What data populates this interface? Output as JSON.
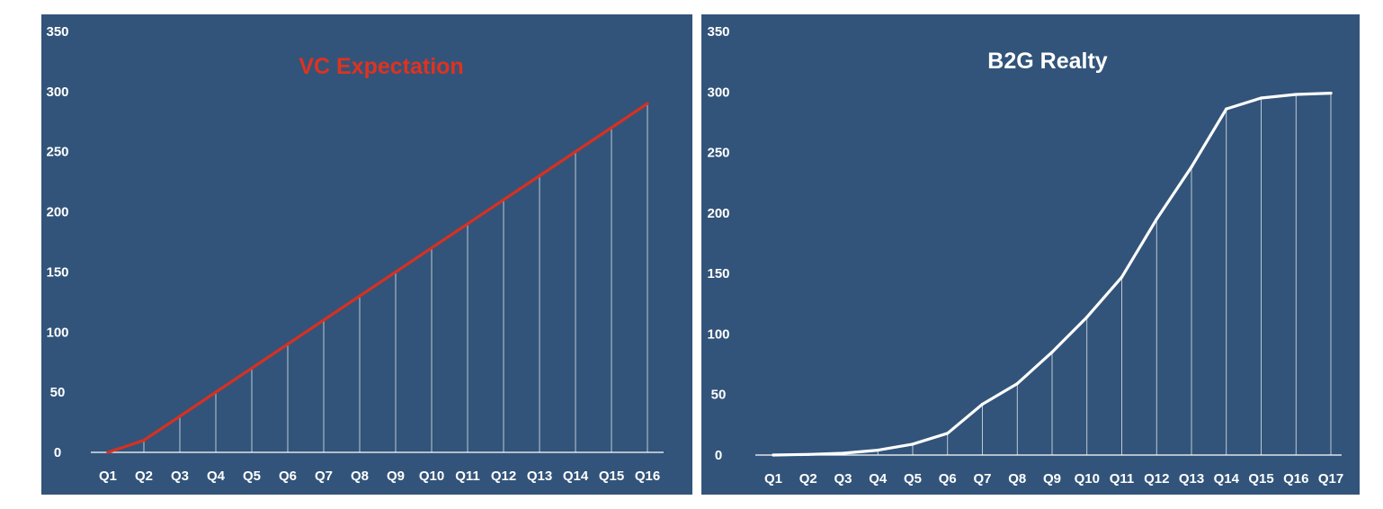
{
  "colors": {
    "panel_bg": "#32547a",
    "vc_line": "#d9301f",
    "b2g_line": "#ffffff",
    "drop_line": "#ffffff",
    "axis": "#ffffff"
  },
  "chart_data": [
    {
      "type": "line",
      "title": "VC Expectation",
      "title_color": "#e0321e",
      "xlabel": "",
      "ylabel": "",
      "ylim": [
        0,
        350
      ],
      "yticks": [
        0,
        50,
        100,
        150,
        200,
        250,
        300,
        350
      ],
      "grid": false,
      "drop_lines": true,
      "categories": [
        "Q1",
        "Q2",
        "Q3",
        "Q4",
        "Q5",
        "Q6",
        "Q7",
        "Q8",
        "Q9",
        "Q10",
        "Q11",
        "Q12",
        "Q13",
        "Q14",
        "Q15",
        "Q16"
      ],
      "values": [
        0,
        10,
        30,
        50,
        70,
        90,
        110,
        130,
        150,
        170,
        190,
        210,
        230,
        250,
        270,
        290
      ],
      "line_color": "#d9301f"
    },
    {
      "type": "line",
      "title": "B2G Realty",
      "title_color": "#ffffff",
      "xlabel": "",
      "ylabel": "",
      "ylim": [
        0,
        350
      ],
      "yticks": [
        0,
        50,
        100,
        150,
        200,
        250,
        300,
        350
      ],
      "grid": false,
      "drop_lines": true,
      "categories": [
        "Q1",
        "Q2",
        "Q3",
        "Q4",
        "Q5",
        "Q6",
        "Q7",
        "Q8",
        "Q9",
        "Q10",
        "Q11",
        "Q12",
        "Q13",
        "Q14",
        "Q15",
        "Q16",
        "Q17"
      ],
      "values": [
        0,
        0.5,
        1.5,
        4,
        9,
        18,
        42,
        59,
        85,
        114,
        147,
        195,
        238,
        286,
        295,
        298,
        299
      ],
      "line_color": "#ffffff"
    }
  ]
}
